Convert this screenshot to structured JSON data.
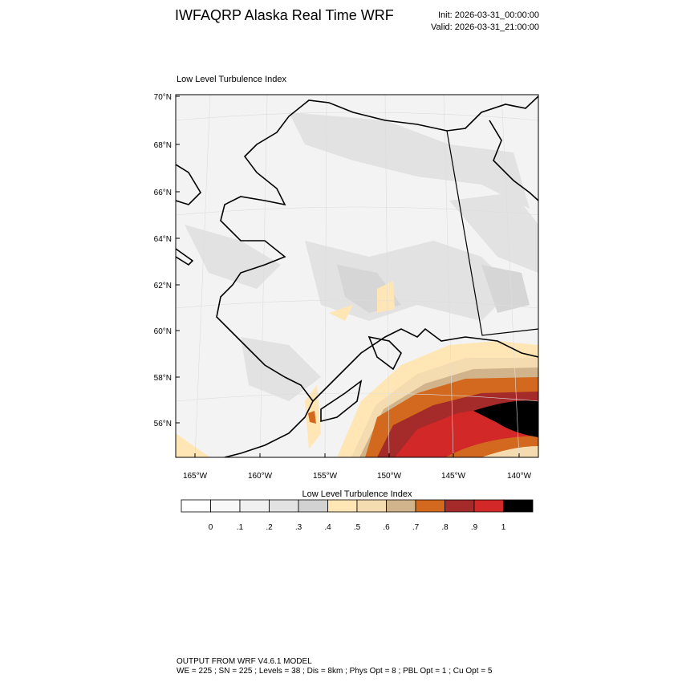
{
  "header": {
    "title": "IWFAQRP Alaska Real Time WRF",
    "init": "Init: 2026-03-31_00:00:00",
    "valid": "Valid: 2026-03-31_21:00:00"
  },
  "map": {
    "title": "Low Level Turbulence Index",
    "lat_labels": [
      "70°N",
      "68°N",
      "66°N",
      "64°N",
      "62°N",
      "60°N",
      "58°N",
      "56°N"
    ],
    "lon_labels": [
      "165°W",
      "160°W",
      "155°W",
      "150°W",
      "145°W",
      "140°W"
    ]
  },
  "colorbar": {
    "title": "Low Level Turbulence Index",
    "colors": [
      "#ffffff",
      "#f8f8f8",
      "#f0f0f0",
      "#e2e2e2",
      "#d2d2d2",
      "#ffe6b4",
      "#f5dcb0",
      "#d2b48c",
      "#d2691e",
      "#a52a2a",
      "#d22828",
      "#000000"
    ],
    "labels": [
      "0",
      ".1",
      ".2",
      ".3",
      ".4",
      ".5",
      ".6",
      ".7",
      ".8",
      ".9",
      "1"
    ]
  },
  "footer": [
    "OUTPUT FROM WRF V4.6.1 MODEL",
    "WE = 225 ; SN = 225 ; Levels = 38 ; Dis = 8km ; Phys Opt = 8 ; PBL Opt = 1 ; Cu Opt = 5"
  ]
}
